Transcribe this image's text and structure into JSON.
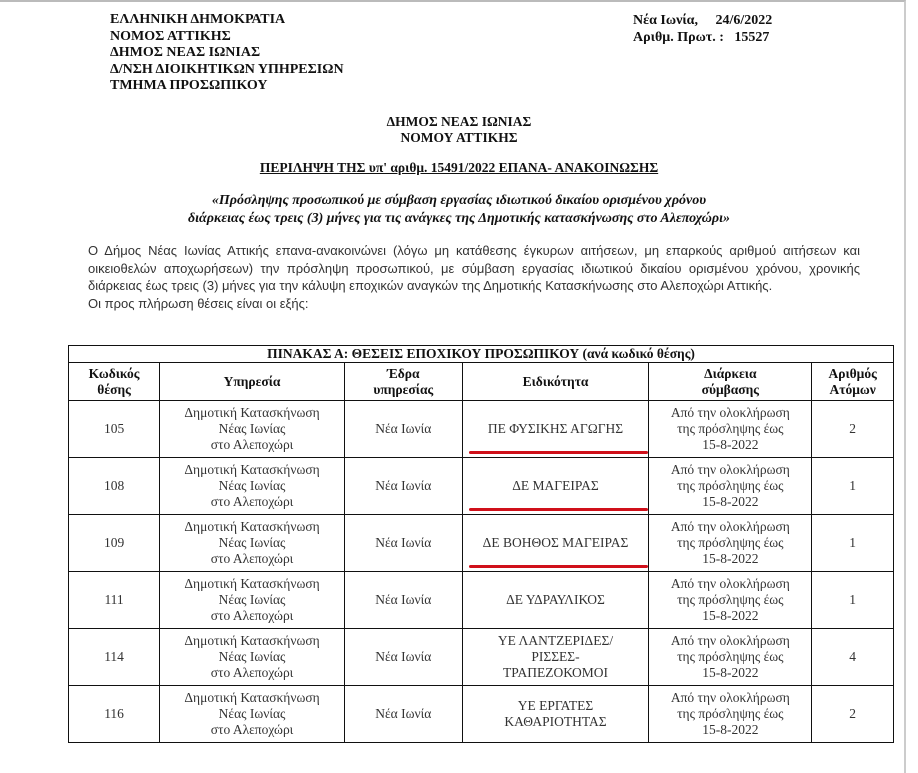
{
  "header_left": [
    "ΕΛΛΗΝΙΚΗ ΔΗΜΟΚΡΑΤΙΑ",
    "ΝΟΜΟΣ  ΑΤΤΙΚΗΣ",
    "ΔΗΜΟΣ  ΝΕΑΣ  ΙΩΝΙΑΣ",
    "Δ/ΝΣΗ ΔΙΟΙΚΗΤΙΚΩΝ ΥΠΗΡΕΣΙΩΝ",
    "ΤΜΗΜΑ ΠΡΟΣΩΠΙΚΟΥ"
  ],
  "header_right": {
    "place_date": "Νέα Ιωνία,     24/6/2022",
    "protocol": "Αριθμ. Πρωτ. :   15527"
  },
  "title": [
    "ΔΗΜΟΣ ΝΕΑΣ ΙΩΝΙΑΣ",
    "ΝΟΜΟΥ ΑΤΤΙΚΗΣ"
  ],
  "summary_heading": "ΠΕΡΙΛΗΨΗ ΤΗΣ υπ' αριθμ. 15491/2022 ΕΠΑΝΑ- ΑΝΑΚΟΙΝΩΣΗΣ",
  "subject": [
    "«Πρόσληψης προσωπικού με σύμβαση εργασίας ιδιωτικού δικαίου ορισμένου χρόνου",
    "διάρκειας έως τρεις (3) μήνες για τις ανάγκες της Δημοτικής κατασκήνωσης στο Αλεποχώρι»"
  ],
  "body": "Ο Δήμος Νέας Ιωνίας Αττικής επανα-ανακοινώνει (λόγω μη κατάθεσης έγκυρων αιτήσεων, μη επαρκούς αριθμού αιτήσεων και οικειοθελών αποχωρήσεων) την πρόσληψη προσωπικού,   με σύμβαση εργασίας ιδιωτικού δικαίου ορισμένου χρόνου, χρονικής διάρκειας έως τρεις (3) μήνες για την κάλυψη εποχικών αναγκών της Δημοτικής Κατασκήνωσης στο Αλεποχώρι Αττικής.",
  "body2": "Οι προς πλήρωση θέσεις είναι οι εξής:",
  "table": {
    "title": "ΠΙΝΑΚΑΣ Α: ΘΕΣΕΙΣ ΕΠΟΧΙΚΟΥ ΠΡΟΣΩΠΙΚΟΥ (ανά κωδικό θέσης)",
    "headers": [
      [
        "Κωδικός",
        "θέσης"
      ],
      [
        "Υπηρεσία"
      ],
      [
        "Έδρα",
        "υπηρεσίας"
      ],
      [
        "Ειδικότητα"
      ],
      [
        "Διάρκεια",
        "σύμβασης"
      ],
      [
        "Αριθμός",
        "Ατόμων"
      ]
    ],
    "rows": [
      {
        "code": "105",
        "service": [
          "Δημοτική Κατασκήνωση",
          "Νέας Ιωνίας",
          "στο Αλεποχώρι"
        ],
        "seat": "Νέα Ιωνία",
        "specialty": [
          "ΠΕ ΦΥΣΙΚΗΣ ΑΓΩΓΗΣ"
        ],
        "duration": [
          "Από την ολοκλήρωση",
          "της πρόσληψης έως",
          "15-8-2022"
        ],
        "count": "2",
        "underlined": true
      },
      {
        "code": "108",
        "service": [
          "Δημοτική Κατασκήνωση",
          "Νέας Ιωνίας",
          "στο Αλεποχώρι"
        ],
        "seat": "Νέα Ιωνία",
        "specialty": [
          "ΔΕ ΜΑΓΕΙΡΑΣ"
        ],
        "duration": [
          "Από την ολοκλήρωση",
          "της πρόσληψης έως",
          "15-8-2022"
        ],
        "count": "1",
        "underlined": true
      },
      {
        "code": "109",
        "service": [
          "Δημοτική Κατασκήνωση",
          "Νέας Ιωνίας",
          "στο Αλεποχώρι"
        ],
        "seat": "Νέα Ιωνία",
        "specialty": [
          "ΔΕ ΒΟΗΘΟΣ ΜΑΓΕΙΡΑΣ"
        ],
        "duration": [
          "Από την ολοκλήρωση",
          "της πρόσληψης έως",
          "15-8-2022"
        ],
        "count": "1",
        "underlined": true
      },
      {
        "code": "111",
        "service": [
          "Δημοτική Κατασκήνωση",
          "Νέας Ιωνίας",
          "στο Αλεποχώρι"
        ],
        "seat": "Νέα Ιωνία",
        "specialty": [
          "ΔΕ ΥΔΡΑΥΛΙΚΟΣ"
        ],
        "duration": [
          "Από την ολοκλήρωση",
          "της πρόσληψης έως",
          "15-8-2022"
        ],
        "count": "1",
        "underlined": false
      },
      {
        "code": "114",
        "service": [
          "Δημοτική Κατασκήνωση",
          "Νέας Ιωνίας",
          "στο Αλεποχώρι"
        ],
        "seat": "Νέα Ιωνία",
        "specialty": [
          "ΥΕ ΛΑΝΤΖΕΡΙΔΕΣ/",
          "ΡΙΣΣΕΣ-",
          "ΤΡΑΠΕΖΟΚΟΜΟΙ"
        ],
        "duration": [
          "Από την ολοκλήρωση",
          "της πρόσληψης έως",
          "15-8-2022"
        ],
        "count": "4",
        "underlined": false
      },
      {
        "code": "116",
        "service": [
          "Δημοτική Κατασκήνωση",
          "Νέας Ιωνίας",
          "στο Αλεποχώρι"
        ],
        "seat": "Νέα Ιωνία",
        "specialty": [
          "ΥΕ ΕΡΓΑΤΕΣ",
          "ΚΑΘΑΡΙΟΤΗΤΑΣ"
        ],
        "duration": [
          "Από την ολοκλήρωση",
          "της πρόσληψης έως",
          "15-8-2022"
        ],
        "count": "2",
        "underlined": false
      }
    ]
  },
  "colors": {
    "highlight_underline": "#d0101a"
  }
}
